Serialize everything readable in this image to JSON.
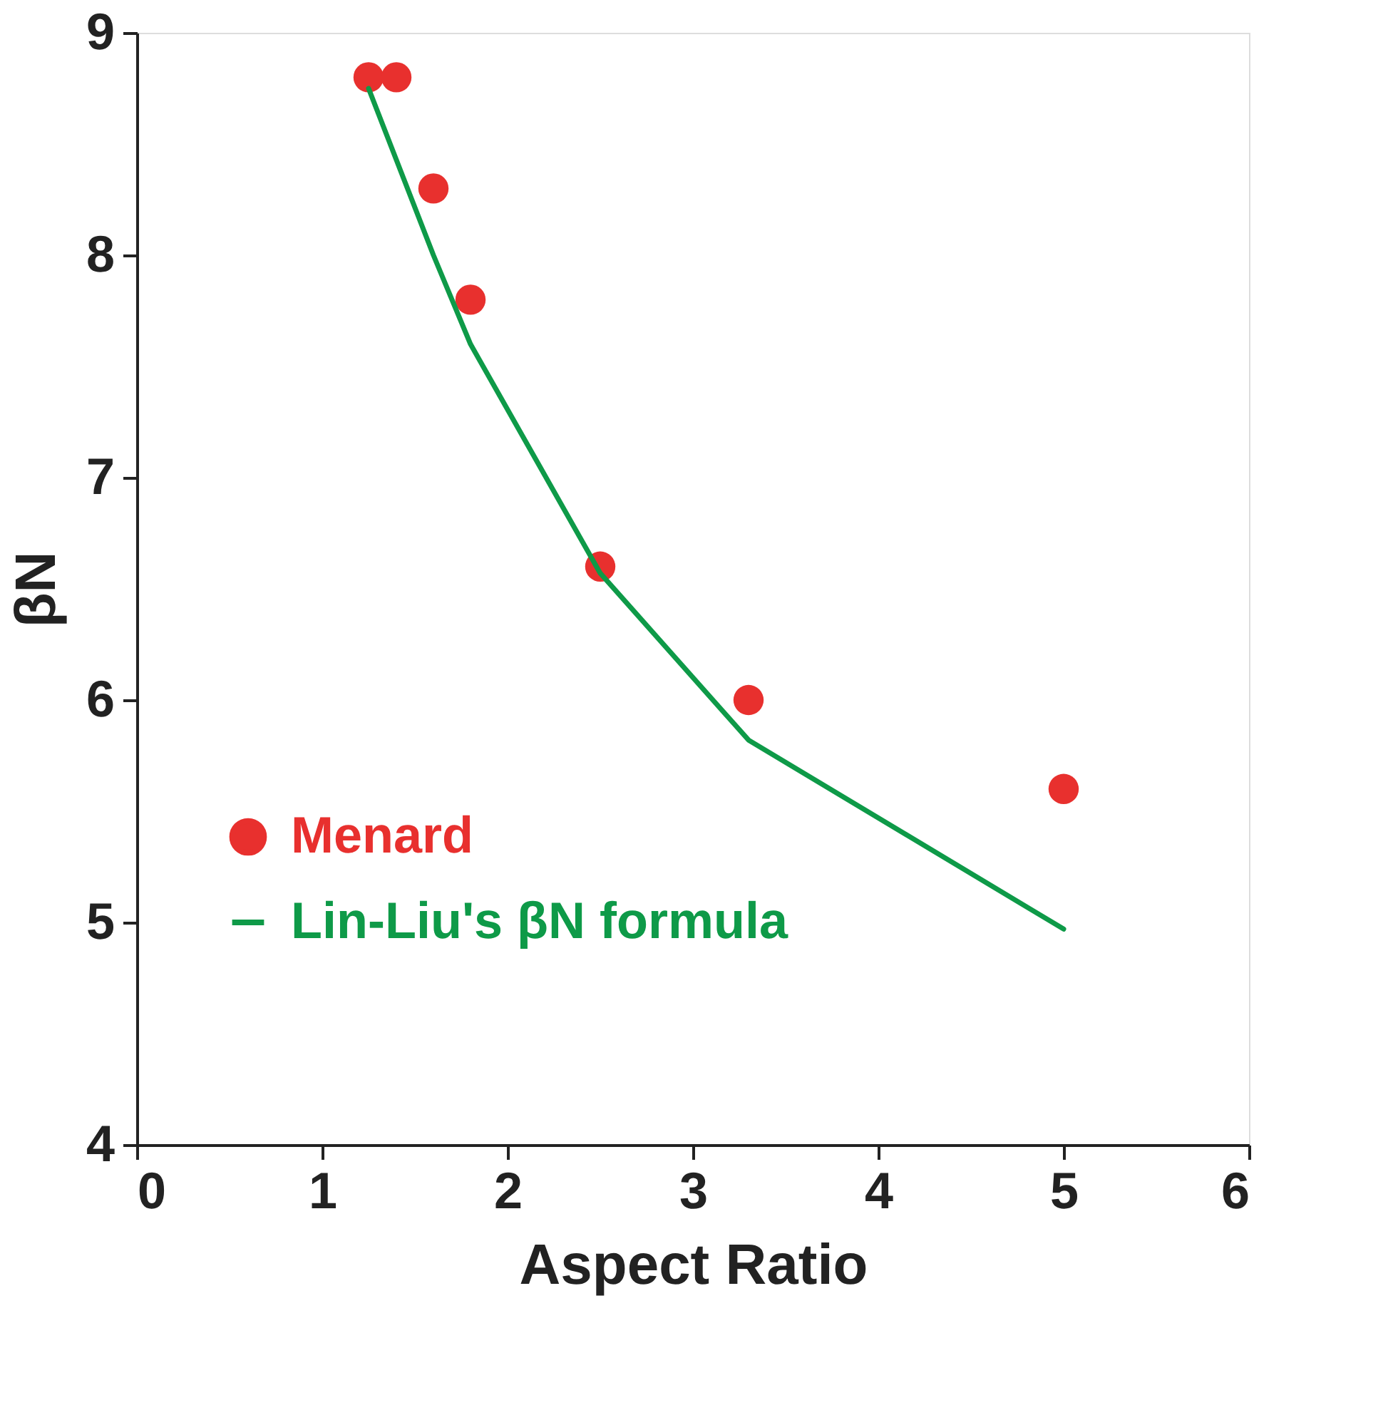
{
  "chart_data": {
    "type": "line",
    "xlabel": "Aspect Ratio",
    "ylabel": "βN",
    "xlim": [
      0,
      6
    ],
    "xticks": [
      0,
      1,
      2,
      3,
      4,
      5,
      6
    ],
    "ylim": [
      4,
      9
    ],
    "yticks": [
      4,
      5,
      6,
      7,
      8,
      9
    ],
    "grid": false,
    "legend": "left",
    "series": [
      {
        "name": "Menard",
        "type": "scatter",
        "marker": "circle",
        "color": "#e8302e",
        "x": [
          1.25,
          1.4,
          1.6,
          1.8,
          2.5,
          3.3,
          5.0
        ],
        "values": [
          8.8,
          8.8,
          8.3,
          7.8,
          6.6,
          6.0,
          5.6
        ]
      },
      {
        "name": "Lin-Liu's βN formula",
        "marker": "none",
        "color": "#0e9a48",
        "line_style": "solid",
        "x": [
          1.25,
          1.6,
          1.8,
          2.5,
          3.3,
          5.0
        ],
        "values": [
          8.75,
          8.0,
          7.6,
          6.57,
          5.82,
          4.97
        ]
      }
    ]
  }
}
